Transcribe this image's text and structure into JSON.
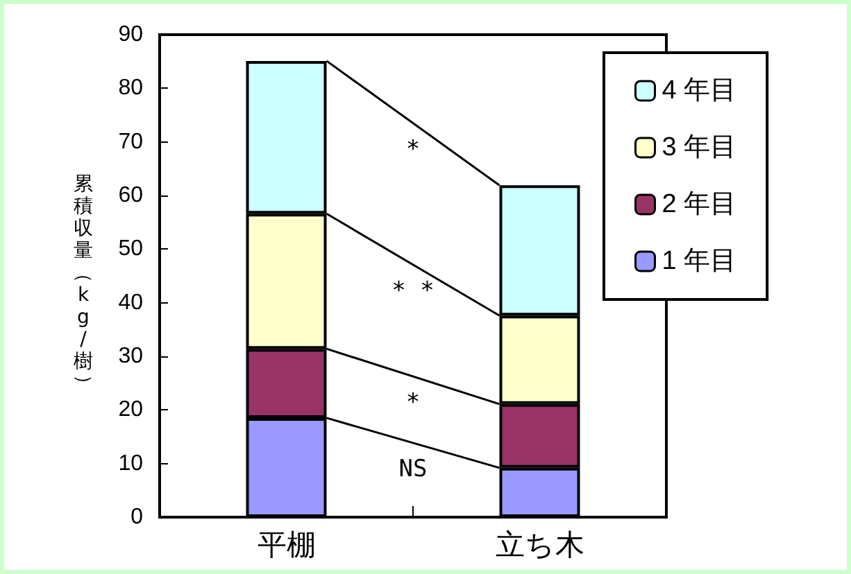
{
  "chart_data": {
    "type": "bar",
    "stacked": true,
    "ylabel": "累積収量（kg/樹）",
    "categories": [
      "平棚",
      "立ち木"
    ],
    "series": [
      {
        "name": "1 年目",
        "color": "#9999ff",
        "values": [
          18.5,
          9.2
        ]
      },
      {
        "name": "2 年目",
        "color": "#993366",
        "values": [
          12.9,
          11.9
        ]
      },
      {
        "name": "3 年目",
        "color": "#ffffcc",
        "values": [
          25.2,
          16.5
        ]
      },
      {
        "name": "4 年目",
        "color": "#ccffff",
        "values": [
          28.5,
          24.3
        ]
      }
    ],
    "ylim": [
      0,
      90
    ],
    "yticks": [
      0,
      10,
      20,
      30,
      40,
      50,
      60,
      70,
      80,
      90
    ],
    "annotations": [
      "NS",
      "*",
      "* *",
      "*"
    ],
    "grid": false,
    "legend": "top right"
  }
}
